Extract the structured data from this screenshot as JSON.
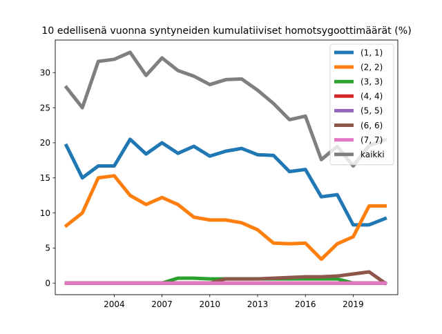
{
  "chart_data": {
    "type": "line",
    "title": "10 edellisenä vuonna syntyneiden kumulatiiviset homotsygoottimäärät (%)",
    "xlabel": "",
    "ylabel": "",
    "xlim": [
      2000.3,
      2021.8
    ],
    "ylim": [
      -1.65,
      34.65
    ],
    "xticks": [
      2004,
      2007,
      2010,
      2013,
      2016,
      2019
    ],
    "yticks": [
      0,
      5,
      10,
      15,
      20,
      25,
      30
    ],
    "grid": false,
    "legend_position": "top-right",
    "x": [
      2001,
      2002,
      2003,
      2004,
      2005,
      2006,
      2007,
      2008,
      2009,
      2010,
      2011,
      2012,
      2013,
      2014,
      2015,
      2016,
      2017,
      2018,
      2019,
      2020,
      2021
    ],
    "series": [
      {
        "name": "(1, 1)",
        "color": "#1f77b4",
        "values": [
          19.6,
          15.0,
          16.7,
          16.7,
          20.5,
          18.4,
          20.0,
          18.5,
          19.5,
          18.1,
          18.8,
          19.2,
          18.3,
          18.2,
          15.9,
          16.2,
          12.3,
          12.6,
          8.3,
          8.3,
          9.2
        ]
      },
      {
        "name": "(2, 2)",
        "color": "#ff7f0e",
        "values": [
          8.2,
          10.0,
          15.0,
          15.3,
          12.5,
          11.2,
          12.2,
          11.2,
          9.4,
          9.0,
          9.0,
          8.6,
          7.6,
          5.7,
          5.6,
          5.7,
          3.4,
          5.6,
          6.6,
          11.0,
          11.0
        ]
      },
      {
        "name": "(3, 3)",
        "color": "#2ca02c",
        "values": [
          0,
          0,
          0,
          0,
          0,
          0,
          0,
          0.7,
          0.7,
          0.6,
          0.6,
          0.6,
          0.6,
          0.6,
          0.6,
          0.6,
          0.6,
          0.6,
          0,
          0,
          0
        ]
      },
      {
        "name": "(4, 4)",
        "color": "#d62728",
        "values": [
          0,
          0,
          0,
          0,
          0,
          0,
          0,
          0,
          0,
          0,
          0,
          0,
          0,
          0,
          0,
          0,
          0,
          0,
          0,
          0,
          0
        ]
      },
      {
        "name": "(5, 5)",
        "color": "#9467bd",
        "values": [
          0,
          0,
          0,
          0,
          0,
          0,
          0,
          0,
          0,
          0,
          0,
          0,
          0,
          0,
          0,
          0,
          0,
          0,
          0,
          0,
          0
        ]
      },
      {
        "name": "(6, 6)",
        "color": "#8c564b",
        "values": [
          0,
          0,
          0,
          0,
          0,
          0,
          0,
          0,
          0,
          0,
          0.6,
          0.6,
          0.6,
          0.7,
          0.8,
          0.9,
          0.9,
          1.0,
          1.3,
          1.6,
          0
        ]
      },
      {
        "name": "(7, 7)",
        "color": "#e377c2",
        "values": [
          0,
          0,
          0,
          0,
          0,
          0,
          0,
          0,
          0,
          0,
          0,
          0,
          0,
          0,
          0,
          0,
          0,
          0,
          0,
          0,
          0
        ]
      },
      {
        "name": "kaikki",
        "color": "#7f7f7f",
        "values": [
          27.9,
          25.0,
          31.6,
          31.9,
          32.9,
          29.6,
          32.1,
          30.3,
          29.5,
          28.3,
          29.0,
          29.1,
          27.5,
          25.6,
          23.3,
          23.8,
          17.6,
          19.5,
          16.7,
          19.6,
          20.4
        ]
      }
    ]
  }
}
